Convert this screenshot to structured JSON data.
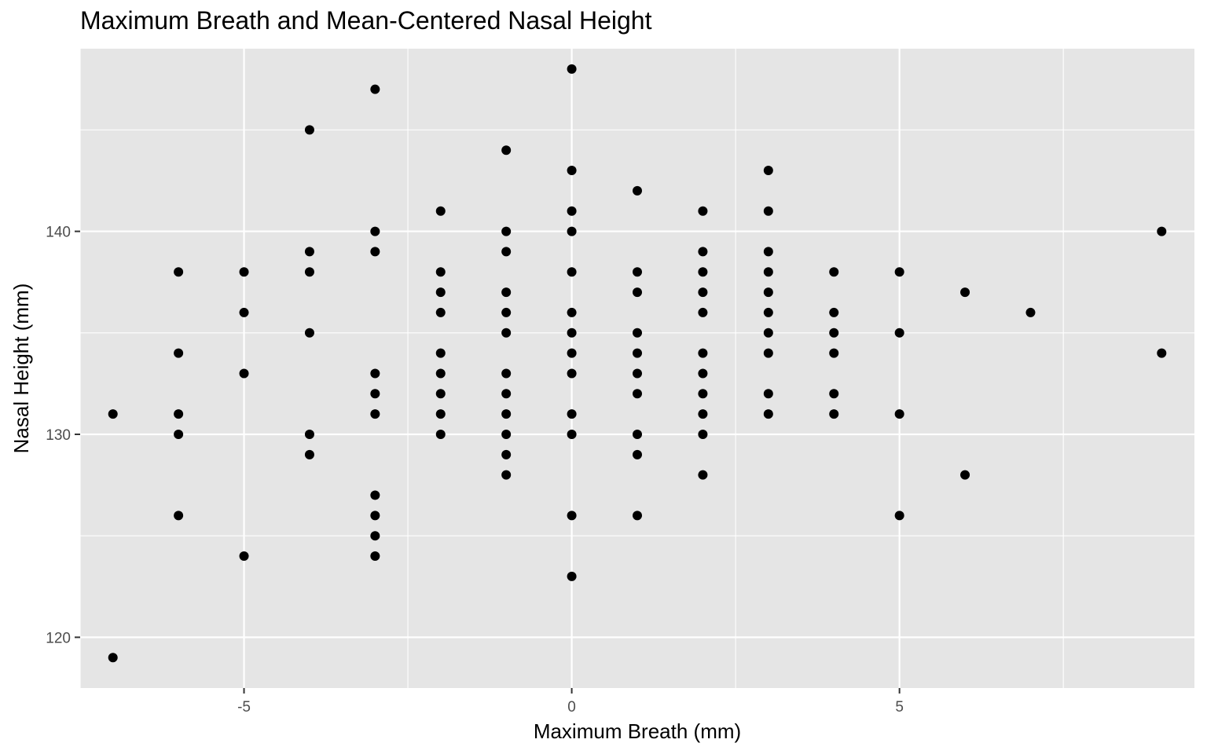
{
  "chart_data": {
    "type": "scatter",
    "title": "Maximum Breath and Mean-Centered Nasal Height",
    "xlabel": "Maximum Breath (mm)",
    "ylabel": "Nasal Height (mm)",
    "xlim": [
      -7.5,
      9.5
    ],
    "ylim": [
      117.5,
      149
    ],
    "x_major_ticks": [
      -5,
      0,
      5
    ],
    "x_tick_labels": [
      "-5",
      "0",
      "5"
    ],
    "x_minor_ticks": [
      -7.5,
      -2.5,
      2.5,
      7.5
    ],
    "y_major_ticks": [
      120,
      130,
      140
    ],
    "y_tick_labels": [
      "120",
      "130",
      "140"
    ],
    "y_minor_ticks": [
      125,
      135,
      145
    ],
    "grid": true,
    "legend": "none",
    "colors": {
      "panel": "#e5e5e5",
      "grid": "#ffffff",
      "point": "#000000",
      "tick_text": "#4d4d4d",
      "tick_mark": "#333333"
    },
    "points": [
      {
        "x": -7,
        "y": 131
      },
      {
        "x": -7,
        "y": 119
      },
      {
        "x": -6,
        "y": 138
      },
      {
        "x": -6,
        "y": 134
      },
      {
        "x": -6,
        "y": 131
      },
      {
        "x": -6,
        "y": 130
      },
      {
        "x": -6,
        "y": 126
      },
      {
        "x": -5,
        "y": 138
      },
      {
        "x": -5,
        "y": 136
      },
      {
        "x": -5,
        "y": 133
      },
      {
        "x": -5,
        "y": 124
      },
      {
        "x": -4,
        "y": 145
      },
      {
        "x": -4,
        "y": 139
      },
      {
        "x": -4,
        "y": 138
      },
      {
        "x": -4,
        "y": 135
      },
      {
        "x": -4,
        "y": 130
      },
      {
        "x": -4,
        "y": 129
      },
      {
        "x": -3,
        "y": 147
      },
      {
        "x": -3,
        "y": 140
      },
      {
        "x": -3,
        "y": 139
      },
      {
        "x": -3,
        "y": 133
      },
      {
        "x": -3,
        "y": 132
      },
      {
        "x": -3,
        "y": 131
      },
      {
        "x": -3,
        "y": 127
      },
      {
        "x": -3,
        "y": 126
      },
      {
        "x": -3,
        "y": 125
      },
      {
        "x": -3,
        "y": 124
      },
      {
        "x": -2,
        "y": 141
      },
      {
        "x": -2,
        "y": 138
      },
      {
        "x": -2,
        "y": 137
      },
      {
        "x": -2,
        "y": 136
      },
      {
        "x": -2,
        "y": 134
      },
      {
        "x": -2,
        "y": 133
      },
      {
        "x": -2,
        "y": 132
      },
      {
        "x": -2,
        "y": 131
      },
      {
        "x": -2,
        "y": 130
      },
      {
        "x": -1,
        "y": 144
      },
      {
        "x": -1,
        "y": 140
      },
      {
        "x": -1,
        "y": 139
      },
      {
        "x": -1,
        "y": 137
      },
      {
        "x": -1,
        "y": 136
      },
      {
        "x": -1,
        "y": 135
      },
      {
        "x": -1,
        "y": 133
      },
      {
        "x": -1,
        "y": 132
      },
      {
        "x": -1,
        "y": 131
      },
      {
        "x": -1,
        "y": 130
      },
      {
        "x": -1,
        "y": 129
      },
      {
        "x": -1,
        "y": 128
      },
      {
        "x": 0,
        "y": 148
      },
      {
        "x": 0,
        "y": 143
      },
      {
        "x": 0,
        "y": 141
      },
      {
        "x": 0,
        "y": 140
      },
      {
        "x": 0,
        "y": 138
      },
      {
        "x": 0,
        "y": 136
      },
      {
        "x": 0,
        "y": 135
      },
      {
        "x": 0,
        "y": 134
      },
      {
        "x": 0,
        "y": 133
      },
      {
        "x": 0,
        "y": 131
      },
      {
        "x": 0,
        "y": 130
      },
      {
        "x": 0,
        "y": 126
      },
      {
        "x": 0,
        "y": 123
      },
      {
        "x": 1,
        "y": 142
      },
      {
        "x": 1,
        "y": 138
      },
      {
        "x": 1,
        "y": 137
      },
      {
        "x": 1,
        "y": 135
      },
      {
        "x": 1,
        "y": 134
      },
      {
        "x": 1,
        "y": 133
      },
      {
        "x": 1,
        "y": 132
      },
      {
        "x": 1,
        "y": 130
      },
      {
        "x": 1,
        "y": 129
      },
      {
        "x": 1,
        "y": 126
      },
      {
        "x": 2,
        "y": 141
      },
      {
        "x": 2,
        "y": 139
      },
      {
        "x": 2,
        "y": 138
      },
      {
        "x": 2,
        "y": 137
      },
      {
        "x": 2,
        "y": 136
      },
      {
        "x": 2,
        "y": 134
      },
      {
        "x": 2,
        "y": 133
      },
      {
        "x": 2,
        "y": 132
      },
      {
        "x": 2,
        "y": 131
      },
      {
        "x": 2,
        "y": 130
      },
      {
        "x": 2,
        "y": 128
      },
      {
        "x": 3,
        "y": 143
      },
      {
        "x": 3,
        "y": 141
      },
      {
        "x": 3,
        "y": 139
      },
      {
        "x": 3,
        "y": 138
      },
      {
        "x": 3,
        "y": 137
      },
      {
        "x": 3,
        "y": 136
      },
      {
        "x": 3,
        "y": 135
      },
      {
        "x": 3,
        "y": 134
      },
      {
        "x": 3,
        "y": 132
      },
      {
        "x": 3,
        "y": 131
      },
      {
        "x": 4,
        "y": 138
      },
      {
        "x": 4,
        "y": 136
      },
      {
        "x": 4,
        "y": 135
      },
      {
        "x": 4,
        "y": 134
      },
      {
        "x": 4,
        "y": 132
      },
      {
        "x": 4,
        "y": 131
      },
      {
        "x": 5,
        "y": 138
      },
      {
        "x": 5,
        "y": 135
      },
      {
        "x": 5,
        "y": 131
      },
      {
        "x": 5,
        "y": 126
      },
      {
        "x": 6,
        "y": 137
      },
      {
        "x": 6,
        "y": 128
      },
      {
        "x": 7,
        "y": 136
      },
      {
        "x": 9,
        "y": 140
      },
      {
        "x": 9,
        "y": 134
      }
    ]
  }
}
